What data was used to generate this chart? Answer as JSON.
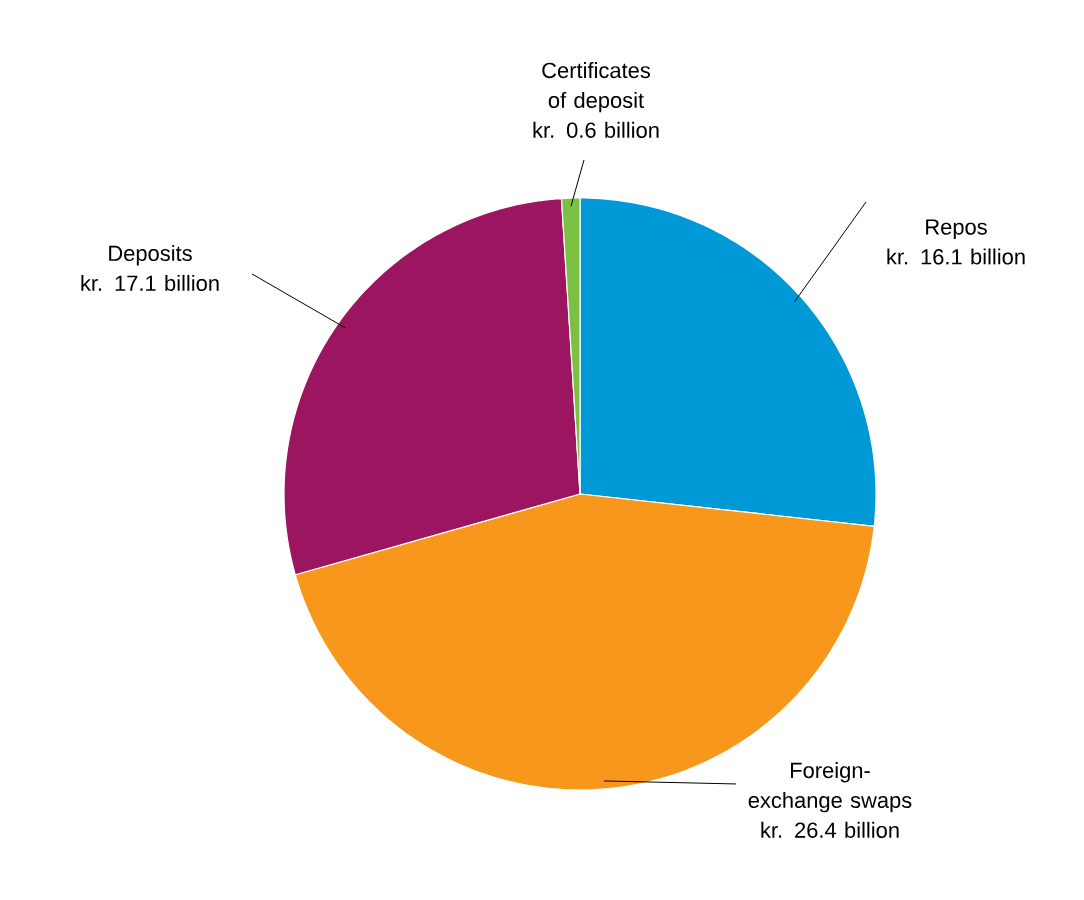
{
  "chart_data": {
    "type": "pie",
    "categories": [
      "Repos",
      "Foreign-exchange swaps",
      "Deposits",
      "Certificates of deposit"
    ],
    "values": [
      16.1,
      26.4,
      17.1,
      0.6
    ],
    "colors": [
      "#0099d8",
      "#f7971c",
      "#9b1560",
      "#7ac143"
    ],
    "value_labels": [
      "kr. 16.1 billion",
      "kr. 26.4 billion",
      "kr. 17.1 billion",
      "kr. 0.6 billion"
    ]
  }
}
